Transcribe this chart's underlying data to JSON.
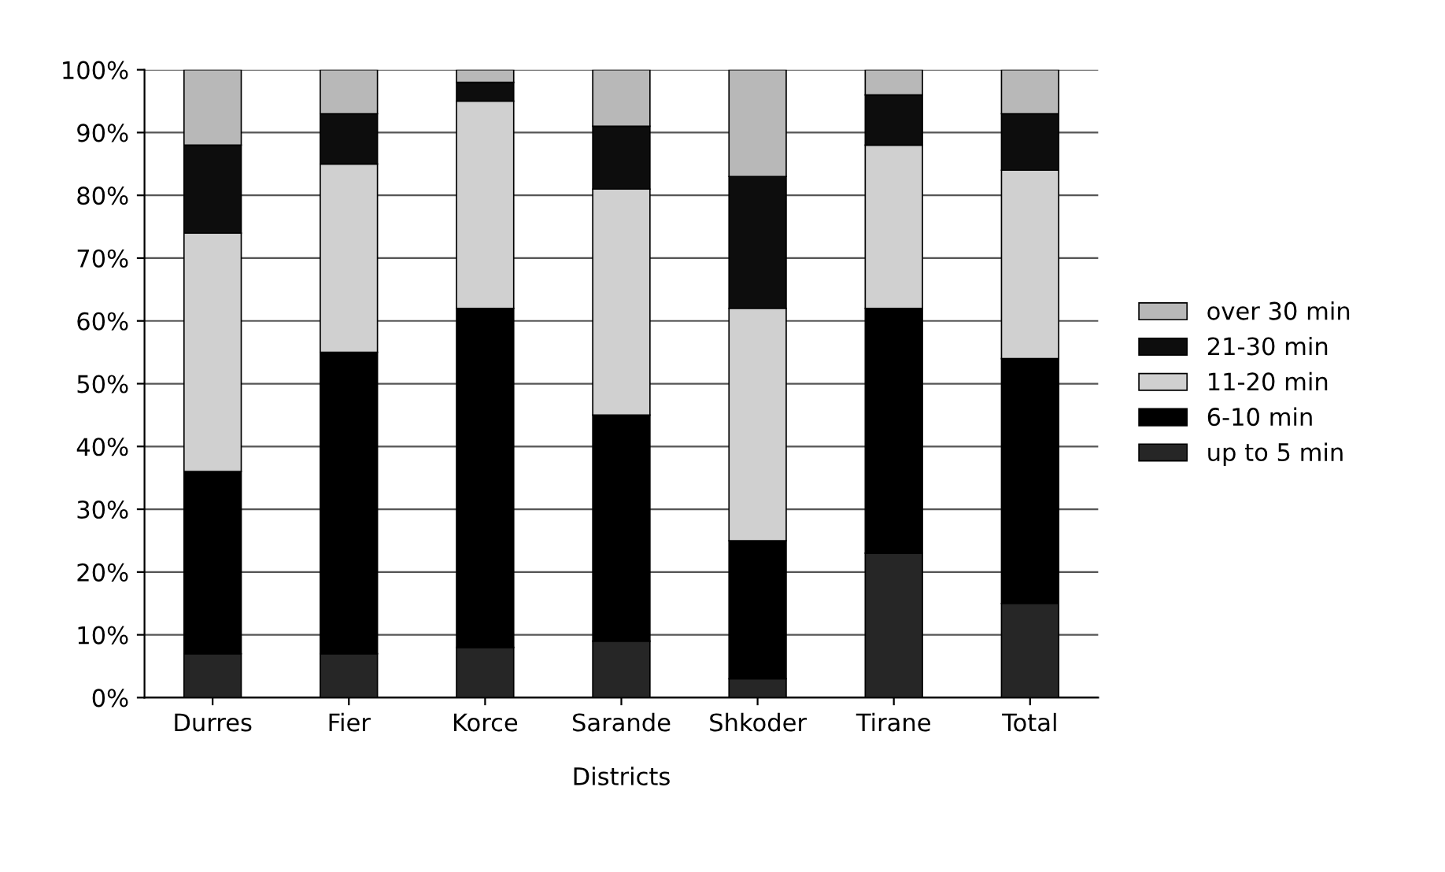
{
  "chart_data": {
    "type": "bar",
    "stacked": true,
    "xlabel": "Districts",
    "categories": [
      "Durres",
      "Fier",
      "Korce",
      "Sarande",
      "Shkoder",
      "Tirane",
      "Total"
    ],
    "series": [
      {
        "name": "up to 5 min",
        "color": "#262626",
        "values": [
          7,
          7,
          8,
          9,
          3,
          23,
          15
        ]
      },
      {
        "name": "6-10 min",
        "color": "#000000",
        "values": [
          29,
          48,
          54,
          36,
          22,
          39,
          39
        ]
      },
      {
        "name": "11-20 min",
        "color": "#d0d0d0",
        "values": [
          38,
          30,
          33,
          36,
          37,
          26,
          30
        ]
      },
      {
        "name": "21-30 min",
        "color": "#0d0d0d",
        "values": [
          14,
          8,
          3,
          10,
          21,
          8,
          9
        ]
      },
      {
        "name": "over 30 min",
        "color": "#b8b8b8",
        "values": [
          12,
          7,
          2,
          9,
          17,
          4,
          7
        ]
      }
    ],
    "ylim": [
      0,
      100
    ],
    "yticks": [
      {
        "value": 0,
        "label": "0%"
      },
      {
        "value": 10,
        "label": "10%"
      },
      {
        "value": 20,
        "label": "20%"
      },
      {
        "value": 30,
        "label": "30%"
      },
      {
        "value": 40,
        "label": "40%"
      },
      {
        "value": 50,
        "label": "50%"
      },
      {
        "value": 60,
        "label": "60%"
      },
      {
        "value": 70,
        "label": "70%"
      },
      {
        "value": 80,
        "label": "80%"
      },
      {
        "value": 90,
        "label": "90%"
      },
      {
        "value": 100,
        "label": "100%"
      }
    ],
    "grid": "y",
    "legend": "right"
  }
}
